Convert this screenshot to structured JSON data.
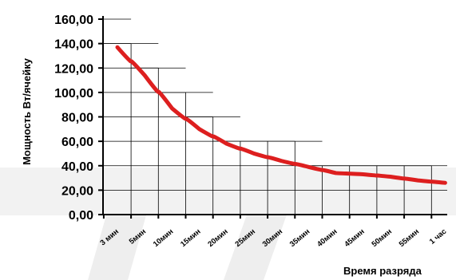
{
  "chart_data": {
    "type": "line",
    "title": "",
    "ylabel": "Мощность Вт/ячейку",
    "xlabel": "Время разряда",
    "ylim": [
      0,
      160
    ],
    "y_ticks": [
      "0,00",
      "20,00",
      "40,00",
      "60,00",
      "80,00",
      "100,00",
      "120,00",
      "140,00",
      "160,00"
    ],
    "categories": [
      "3 мин",
      "5мин",
      "10мин",
      "15мин",
      "20мин",
      "25мин",
      "30мин",
      "35мин",
      "40мин",
      "45мин",
      "50мин",
      "55мин",
      "1 час"
    ],
    "series": [
      {
        "values": [
          137,
          114,
          87,
          70,
          58,
          50,
          44,
          39,
          34,
          33,
          31,
          28,
          26
        ],
        "color": "#dd1f1f"
      }
    ],
    "step_outline": [
      140,
      120,
      100,
      80,
      60,
      60,
      60,
      40,
      40,
      40,
      40,
      40
    ],
    "grid": true
  }
}
